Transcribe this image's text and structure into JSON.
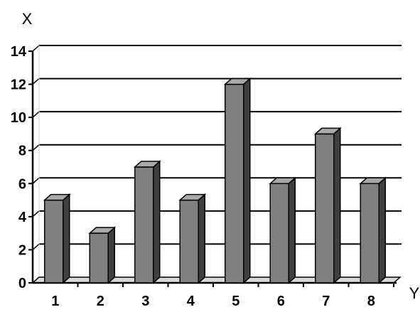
{
  "chart_data": {
    "type": "bar",
    "categories": [
      "1",
      "2",
      "3",
      "4",
      "5",
      "6",
      "7",
      "8"
    ],
    "series": [
      {
        "values": [
          5,
          3,
          7,
          5,
          12,
          6,
          9,
          6
        ]
      }
    ],
    "xlabel": "Y",
    "ylabel": "X",
    "ylim": [
      0,
      14
    ],
    "yticks": [
      "0",
      "2",
      "4",
      "6",
      "8",
      "10",
      "12",
      "14"
    ],
    "grid": true,
    "style": "3d-column",
    "colors": {
      "bar_front": "#808080",
      "bar_top": "#a9a9a9",
      "bar_side": "#3f3f3f",
      "gridline": "#000000",
      "axis": "#000000",
      "background": "#ffffff"
    }
  }
}
